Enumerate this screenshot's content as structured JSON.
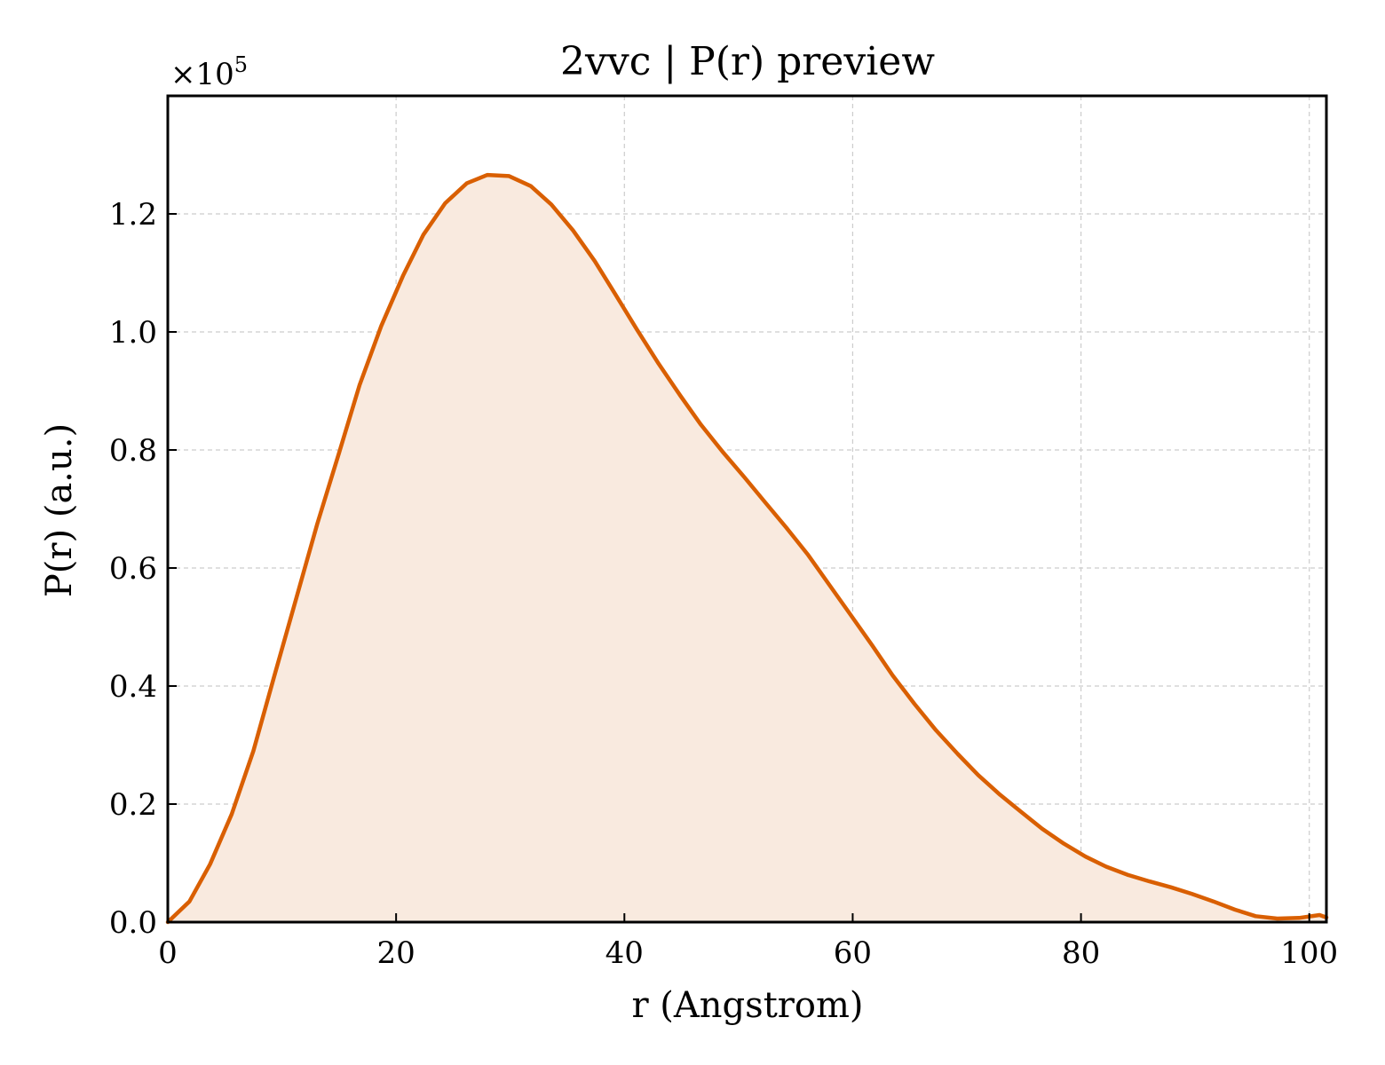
{
  "chart_data": {
    "type": "area",
    "title": "2vvc | P(r) preview",
    "xlabel": "r (Angstrom)",
    "ylabel": "P(r) (a.u.)",
    "y_scale_prefix": "×10",
    "y_scale_exponent": "5",
    "xlim": [
      0,
      101.5
    ],
    "ylim": [
      0,
      1.4
    ],
    "x_ticks": [
      0,
      20,
      40,
      60,
      80,
      100
    ],
    "x_tick_labels": [
      "0",
      "20",
      "40",
      "60",
      "80",
      "100"
    ],
    "y_ticks": [
      0,
      0.2,
      0.4,
      0.6,
      0.8,
      1.0,
      1.2
    ],
    "y_tick_labels": [
      "0.0",
      "0.2",
      "0.4",
      "0.6",
      "0.8",
      "1.0",
      "1.2"
    ],
    "grid": true,
    "line_color": "#d95f02",
    "fill_color": "#f9eadf",
    "series": [
      {
        "x": [
          0,
          1.9,
          3.7,
          5.6,
          7.5,
          9.3,
          11.2,
          13.1,
          15.0,
          16.8,
          18.7,
          20.6,
          22.4,
          24.3,
          26.2,
          28.0,
          29.9,
          31.8,
          33.6,
          35.5,
          37.4,
          39.2,
          41.1,
          43.0,
          44.9,
          46.7,
          48.6,
          50.5,
          52.3,
          54.2,
          56.1,
          57.9,
          59.8,
          61.7,
          63.5,
          65.4,
          67.3,
          69.2,
          71.0,
          72.9,
          74.8,
          76.6,
          78.5,
          80.4,
          82.2,
          84.1,
          86.0,
          87.9,
          89.7,
          91.6,
          93.5,
          95.3,
          97.2,
          99.1,
          100.9,
          101.5
        ],
        "y": [
          0.0,
          0.035,
          0.098,
          0.183,
          0.29,
          0.415,
          0.545,
          0.675,
          0.795,
          0.91,
          1.01,
          1.095,
          1.165,
          1.218,
          1.252,
          1.266,
          1.264,
          1.247,
          1.216,
          1.172,
          1.12,
          1.064,
          1.004,
          0.946,
          0.892,
          0.843,
          0.797,
          0.754,
          0.712,
          0.668,
          0.622,
          0.573,
          0.521,
          0.469,
          0.418,
          0.37,
          0.325,
          0.285,
          0.249,
          0.216,
          0.186,
          0.158,
          0.133,
          0.111,
          0.094,
          0.08,
          0.069,
          0.059,
          0.048,
          0.035,
          0.021,
          0.01,
          0.006,
          0.007,
          0.012,
          0.008
        ]
      }
    ]
  }
}
